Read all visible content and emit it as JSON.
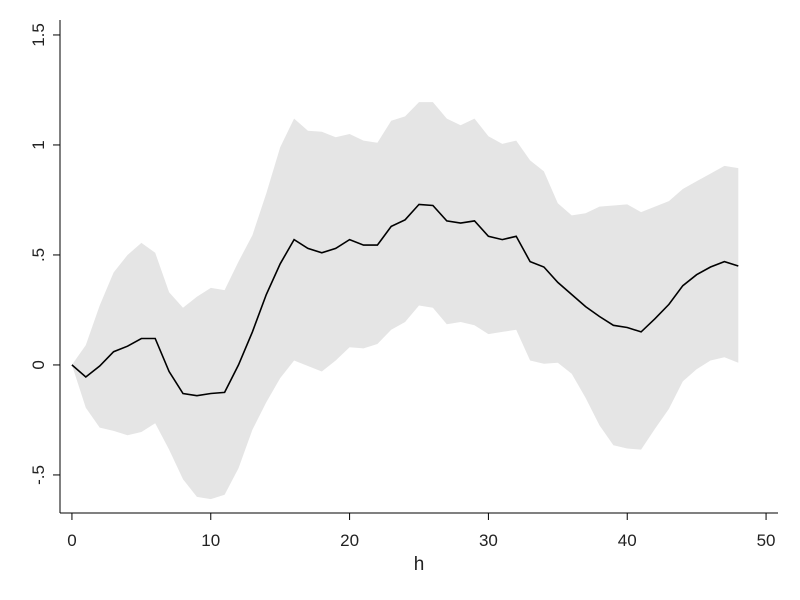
{
  "chart_data": {
    "type": "line",
    "xlabel": "h",
    "x": [
      0,
      1,
      2,
      3,
      4,
      5,
      6,
      7,
      8,
      9,
      10,
      11,
      12,
      13,
      14,
      15,
      16,
      17,
      18,
      19,
      20,
      21,
      22,
      23,
      24,
      25,
      26,
      27,
      28,
      29,
      30,
      31,
      32,
      33,
      34,
      35,
      36,
      37,
      38,
      39,
      40,
      41,
      42,
      43,
      44,
      45,
      46,
      47,
      48
    ],
    "series": [
      {
        "color": "#000000",
        "values": [
          0,
          -0.055,
          -0.005,
          0.06,
          0.085,
          0.12,
          0.12,
          -0.03,
          -0.13,
          -0.14,
          -0.13,
          -0.125,
          0,
          0.15,
          0.32,
          0.46,
          0.57,
          0.53,
          0.51,
          0.53,
          0.57,
          0.545,
          0.545,
          0.63,
          0.66,
          0.73,
          0.725,
          0.655,
          0.645,
          0.655,
          0.585,
          0.57,
          0.585,
          0.47,
          0.445,
          0.375,
          0.32,
          0.265,
          0.22,
          0.18,
          0.17,
          0.15,
          0.21,
          0.275,
          0.36,
          0.41,
          0.445,
          0.47,
          0.45
        ]
      }
    ],
    "band": {
      "color": "#e5e5e5",
      "upper": [
        0,
        0.09,
        0.27,
        0.42,
        0.5,
        0.555,
        0.51,
        0.33,
        0.26,
        0.31,
        0.35,
        0.34,
        0.47,
        0.59,
        0.78,
        0.99,
        1.12,
        1.065,
        1.06,
        1.035,
        1.05,
        1.02,
        1.01,
        1.11,
        1.13,
        1.195,
        1.195,
        1.12,
        1.09,
        1.12,
        1.04,
        1.005,
        1.02,
        0.93,
        0.88,
        0.735,
        0.68,
        0.69,
        0.72,
        0.725,
        0.73,
        0.695,
        0.72,
        0.745,
        0.8,
        0.835,
        0.87,
        0.905,
        0.895
      ],
      "lower": [
        0,
        -0.195,
        -0.285,
        -0.3,
        -0.32,
        -0.305,
        -0.265,
        -0.385,
        -0.52,
        -0.6,
        -0.61,
        -0.59,
        -0.47,
        -0.295,
        -0.17,
        -0.06,
        0.02,
        -0.005,
        -0.03,
        0.02,
        0.08,
        0.075,
        0.095,
        0.16,
        0.195,
        0.27,
        0.26,
        0.185,
        0.195,
        0.18,
        0.14,
        0.15,
        0.16,
        0.02,
        0.005,
        0.01,
        -0.04,
        -0.15,
        -0.275,
        -0.365,
        -0.38,
        -0.385,
        -0.29,
        -0.2,
        -0.075,
        -0.02,
        0.02,
        0.035,
        0.01
      ]
    },
    "xlim": [
      -0.86,
      50.86
    ],
    "xticks": [
      0,
      10,
      20,
      30,
      40,
      50
    ],
    "ylim": [
      -0.673,
      1.568
    ],
    "yticks": [
      {
        "value": -0.5,
        "label": "-.5"
      },
      0,
      {
        "value": 0.5,
        "label": ".5"
      },
      1,
      1.5
    ],
    "grid": false
  }
}
